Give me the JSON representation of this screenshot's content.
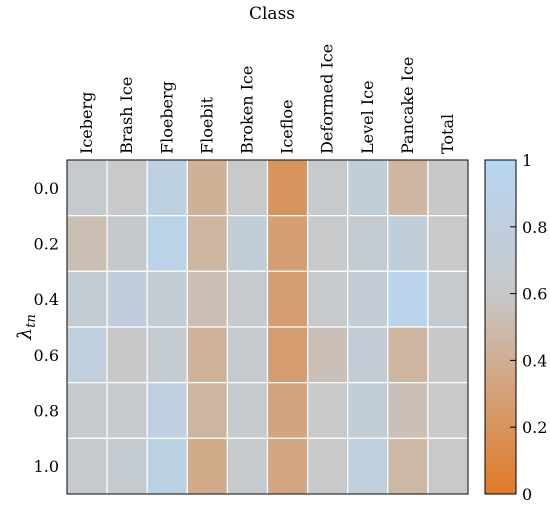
{
  "chart_data": {
    "type": "heatmap",
    "title": "Class",
    "xlabel": "",
    "ylabel": "λ_tn",
    "ylabel_main": "λ",
    "ylabel_sub": "tn",
    "x_categories": [
      "Iceberg",
      "Brash Ice",
      "Floeberg",
      "Floebit",
      "Broken Ice",
      "Icefloe",
      "Deformed Ice",
      "Level Ice",
      "Pancake Ice",
      "Total"
    ],
    "y_categories": [
      "0.0",
      "0.2",
      "0.4",
      "0.6",
      "0.8",
      "1.0"
    ],
    "values": [
      [
        0.66,
        0.62,
        0.85,
        0.42,
        0.63,
        0.2,
        0.65,
        0.75,
        0.46,
        0.6
      ],
      [
        0.52,
        0.64,
        0.9,
        0.45,
        0.75,
        0.28,
        0.63,
        0.68,
        0.77,
        0.63
      ],
      [
        0.7,
        0.78,
        0.7,
        0.53,
        0.67,
        0.28,
        0.65,
        0.72,
        0.93,
        0.67
      ],
      [
        0.8,
        0.6,
        0.69,
        0.43,
        0.67,
        0.27,
        0.54,
        0.72,
        0.45,
        0.6
      ],
      [
        0.66,
        0.66,
        0.83,
        0.45,
        0.65,
        0.32,
        0.63,
        0.73,
        0.54,
        0.63
      ],
      [
        0.67,
        0.68,
        0.88,
        0.37,
        0.67,
        0.34,
        0.63,
        0.79,
        0.47,
        0.63
      ]
    ],
    "colorbar": {
      "min": 0,
      "max": 1,
      "ticks": [
        "0",
        "0.2",
        "0.4",
        "0.6",
        "0.8",
        "1"
      ],
      "tick_values": [
        0,
        0.2,
        0.4,
        0.6,
        0.8,
        1
      ],
      "colors": [
        "#e07a27",
        "#c8c8c8",
        "#b6d6f2"
      ]
    },
    "grid": true,
    "legend": "colorbar-right"
  }
}
